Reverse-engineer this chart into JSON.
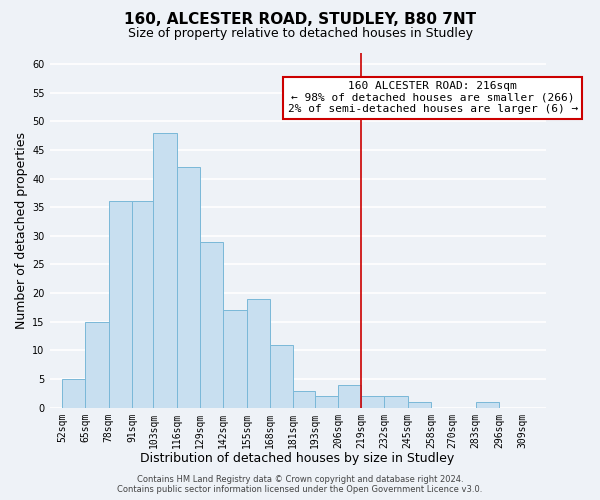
{
  "title": "160, ALCESTER ROAD, STUDLEY, B80 7NT",
  "subtitle": "Size of property relative to detached houses in Studley",
  "xlabel": "Distribution of detached houses by size in Studley",
  "ylabel": "Number of detached properties",
  "bar_left_edges": [
    52,
    65,
    78,
    91,
    103,
    116,
    129,
    142,
    155,
    168,
    181,
    193,
    206,
    219,
    232,
    245,
    258,
    270,
    283,
    296
  ],
  "bar_heights": [
    5,
    15,
    36,
    36,
    48,
    42,
    29,
    17,
    19,
    11,
    3,
    2,
    4,
    2,
    2,
    1,
    0,
    0,
    1,
    0
  ],
  "bar_color": "#c8dff0",
  "bar_edgecolor": "#7ab8d8",
  "tick_labels": [
    "52sqm",
    "65sqm",
    "78sqm",
    "91sqm",
    "103sqm",
    "116sqm",
    "129sqm",
    "142sqm",
    "155sqm",
    "168sqm",
    "181sqm",
    "193sqm",
    "206sqm",
    "219sqm",
    "232sqm",
    "245sqm",
    "258sqm",
    "270sqm",
    "283sqm",
    "296sqm",
    "309sqm"
  ],
  "tick_positions": [
    52,
    65,
    78,
    91,
    103,
    116,
    129,
    142,
    155,
    168,
    181,
    193,
    206,
    219,
    232,
    245,
    258,
    270,
    283,
    296,
    309
  ],
  "ylim": [
    0,
    62
  ],
  "yticks": [
    0,
    5,
    10,
    15,
    20,
    25,
    30,
    35,
    40,
    45,
    50,
    55,
    60
  ],
  "xlim_left": 45,
  "xlim_right": 322,
  "property_line_x": 219,
  "property_line_color": "#cc0000",
  "annotation_title": "160 ALCESTER ROAD: 216sqm",
  "annotation_line1": "← 98% of detached houses are smaller (266)",
  "annotation_line2": "2% of semi-detached houses are larger (6) →",
  "footer_line1": "Contains HM Land Registry data © Crown copyright and database right 2024.",
  "footer_line2": "Contains public sector information licensed under the Open Government Licence v3.0.",
  "background_color": "#eef2f7",
  "grid_color": "#ffffff",
  "title_fontsize": 11,
  "subtitle_fontsize": 9,
  "axis_label_fontsize": 9,
  "tick_fontsize": 7,
  "footer_fontsize": 6,
  "annotation_fontsize": 8
}
